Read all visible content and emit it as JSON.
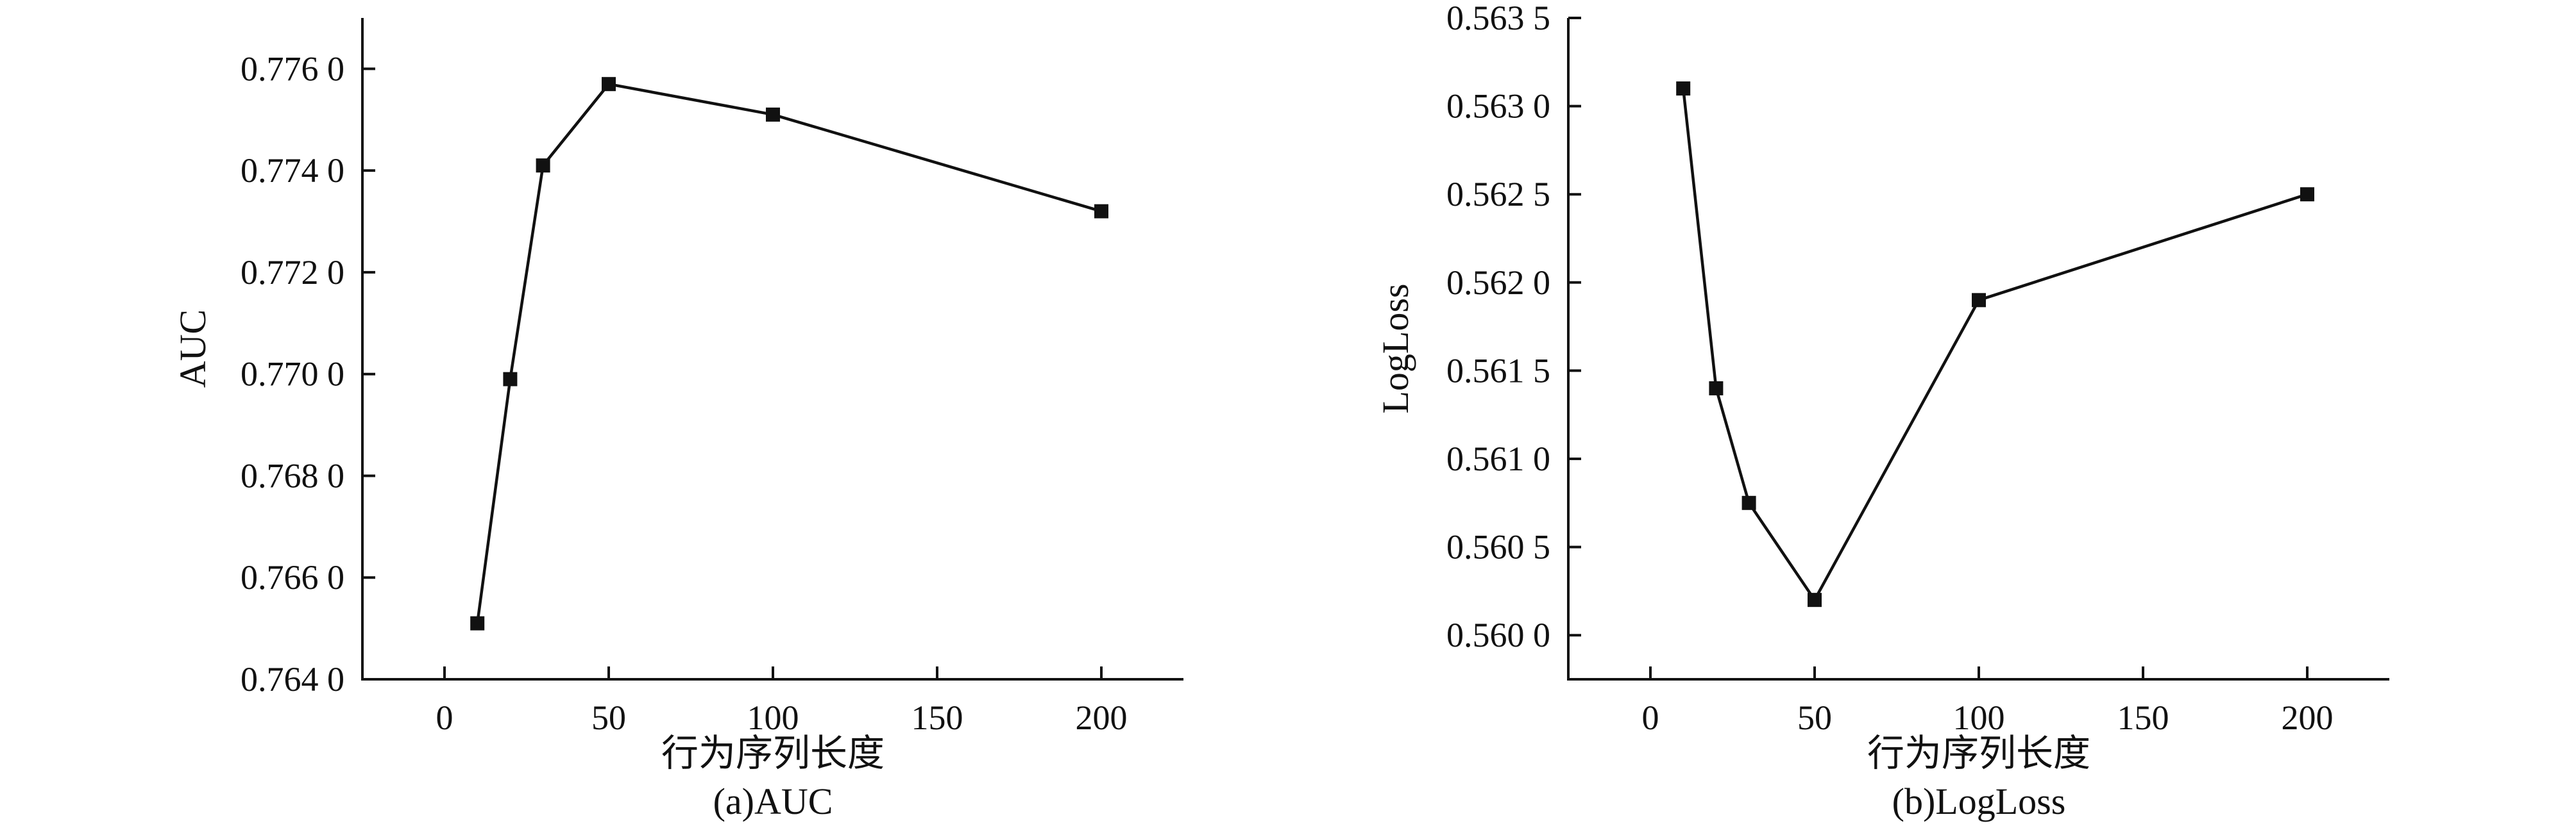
{
  "chart_data": [
    {
      "type": "line",
      "caption": "(a)AUC",
      "xlabel": "行为序列长度",
      "ylabel": "AUC",
      "xlim": [
        -25,
        225
      ],
      "ylim": [
        0.764,
        0.777
      ],
      "xticks": [
        0,
        50,
        100,
        150,
        200
      ],
      "xtick_labels": [
        "0",
        "50",
        "100",
        "150",
        "200"
      ],
      "yticks": [
        0.764,
        0.766,
        0.768,
        0.77,
        0.772,
        0.774,
        0.776
      ],
      "ytick_labels": [
        "0.764 0",
        "0.766 0",
        "0.768 0",
        "0.770 0",
        "0.772 0",
        "0.774 0",
        "0.776 0"
      ],
      "grid": false,
      "series": [
        {
          "x": [
            10,
            20,
            30,
            50,
            100,
            200
          ],
          "y": [
            0.7651,
            0.7699,
            0.7741,
            0.7757,
            0.7751,
            0.7732
          ]
        }
      ]
    },
    {
      "type": "line",
      "caption": "(b)LogLoss",
      "xlabel": "行为序列长度",
      "ylabel": "LogLoss",
      "xlim": [
        -25,
        225
      ],
      "ylim": [
        0.55975,
        0.5635
      ],
      "xticks": [
        0,
        50,
        100,
        150,
        200
      ],
      "xtick_labels": [
        "0",
        "50",
        "100",
        "150",
        "200"
      ],
      "yticks": [
        0.56,
        0.5605,
        0.561,
        0.5615,
        0.562,
        0.5625,
        0.563,
        0.5635
      ],
      "ytick_labels": [
        "0.560 0",
        "0.560 5",
        "0.561 0",
        "0.561 5",
        "0.562 0",
        "0.562 5",
        "0.563 0",
        "0.563 5"
      ],
      "grid": false,
      "series": [
        {
          "x": [
            10,
            20,
            30,
            50,
            100,
            200
          ],
          "y": [
            0.5631,
            0.5614,
            0.56075,
            0.5602,
            0.5619,
            0.5625
          ]
        }
      ]
    }
  ]
}
